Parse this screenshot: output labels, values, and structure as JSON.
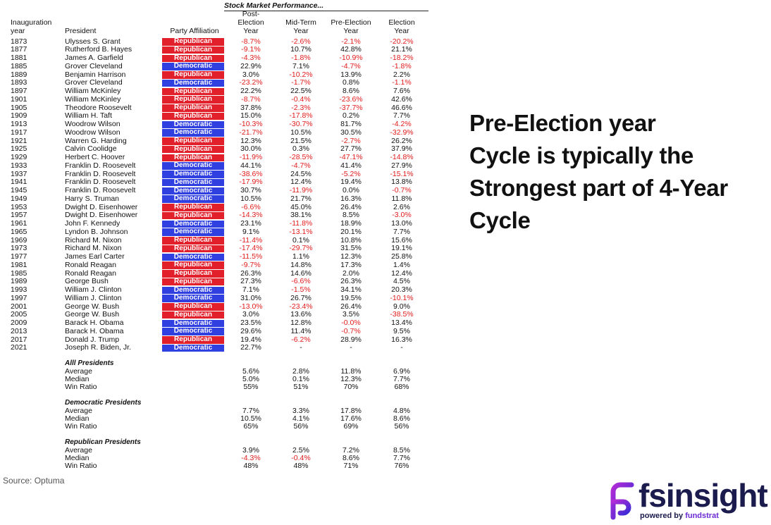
{
  "table": {
    "super_title": "Stock Market Performance...",
    "headers": {
      "year": "Inauguration\nyear",
      "president": "President",
      "party": "Party Affiliation",
      "post": "Post-\nElection\nYear",
      "mid": "Mid-Term\nYear",
      "pre": "Pre-Election\nYear",
      "elec": "Election\nYear"
    },
    "rows": [
      {
        "year": "1873",
        "president": "Ulysses S. Grant",
        "party": "Republican",
        "post": "-8.7%",
        "mid": "-2.6%",
        "pre": "-2.1%",
        "elec": "-20.2%"
      },
      {
        "year": "1877",
        "president": "Rutherford B. Hayes",
        "party": "Republican",
        "post": "-9.1%",
        "mid": "10.7%",
        "pre": "42.8%",
        "elec": "21.1%"
      },
      {
        "year": "1881",
        "president": "James A. Garfield",
        "party": "Republican",
        "post": "-4.3%",
        "mid": "-1.8%",
        "pre": "-10.9%",
        "elec": "-18.2%"
      },
      {
        "year": "1885",
        "president": "Grover Cleveland",
        "party": "Democratic",
        "post": "22.9%",
        "mid": "7.1%",
        "pre": "-4.7%",
        "elec": "-1.8%"
      },
      {
        "year": "1889",
        "president": "Benjamin Harrison",
        "party": "Republican",
        "post": "3.0%",
        "mid": "-10.2%",
        "pre": "13.9%",
        "elec": "2.2%"
      },
      {
        "year": "1893",
        "president": "Grover Cleveland",
        "party": "Democratic",
        "post": "-23.2%",
        "mid": "-1.7%",
        "pre": "0.8%",
        "elec": "-1.1%"
      },
      {
        "year": "1897",
        "president": "William McKinley",
        "party": "Republican",
        "post": "22.2%",
        "mid": "22.5%",
        "pre": "8.6%",
        "elec": "7.6%"
      },
      {
        "year": "1901",
        "president": "William McKinley",
        "party": "Republican",
        "post": "-8.7%",
        "mid": "-0.4%",
        "pre": "-23.6%",
        "elec": "42.6%"
      },
      {
        "year": "1905",
        "president": "Theodore Roosevelt",
        "party": "Republican",
        "post": "37.8%",
        "mid": "-2.3%",
        "pre": "-37.7%",
        "elec": "46.6%"
      },
      {
        "year": "1909",
        "president": "William H. Taft",
        "party": "Republican",
        "post": "15.0%",
        "mid": "-17.8%",
        "pre": "0.2%",
        "elec": "7.7%"
      },
      {
        "year": "1913",
        "president": "Woodrow Wilson",
        "party": "Democratic",
        "post": "-10.3%",
        "mid": "-30.7%",
        "pre": "81.7%",
        "elec": "-4.2%"
      },
      {
        "year": "1917",
        "president": "Woodrow Wilson",
        "party": "Democratic",
        "post": "-21.7%",
        "mid": "10.5%",
        "pre": "30.5%",
        "elec": "-32.9%"
      },
      {
        "year": "1921",
        "president": "Warren G. Harding",
        "party": "Republican",
        "post": "12.3%",
        "mid": "21.5%",
        "pre": "-2.7%",
        "elec": "26.2%"
      },
      {
        "year": "1925",
        "president": "Calvin Coolidge",
        "party": "Republican",
        "post": "30.0%",
        "mid": "0.3%",
        "pre": "27.7%",
        "elec": "37.9%"
      },
      {
        "year": "1929",
        "president": "Herbert C. Hoover",
        "party": "Republican",
        "post": "-11.9%",
        "mid": "-28.5%",
        "pre": "-47.1%",
        "elec": "-14.8%"
      },
      {
        "year": "1933",
        "president": "Franklin D. Roosevelt",
        "party": "Democratic",
        "post": "44.1%",
        "mid": "-4.7%",
        "pre": "41.4%",
        "elec": "27.9%"
      },
      {
        "year": "1937",
        "president": "Franklin D. Roosevelt",
        "party": "Democratic",
        "post": "-38.6%",
        "mid": "24.5%",
        "pre": "-5.2%",
        "elec": "-15.1%"
      },
      {
        "year": "1941",
        "president": "Franklin D. Roosevelt",
        "party": "Democratic",
        "post": "-17.9%",
        "mid": "12.4%",
        "pre": "19.4%",
        "elec": "13.8%"
      },
      {
        "year": "1945",
        "president": "Franklin D. Roosevelt",
        "party": "Democratic",
        "post": "30.7%",
        "mid": "-11.9%",
        "pre": "0.0%",
        "elec": "-0.7%"
      },
      {
        "year": "1949",
        "president": "Harry S. Truman",
        "party": "Democratic",
        "post": "10.5%",
        "mid": "21.7%",
        "pre": "16.3%",
        "elec": "11.8%"
      },
      {
        "year": "1953",
        "president": "Dwight D. Eisenhower",
        "party": "Republican",
        "post": "-6.6%",
        "mid": "45.0%",
        "pre": "26.4%",
        "elec": "2.6%"
      },
      {
        "year": "1957",
        "president": "Dwight D. Eisenhower",
        "party": "Republican",
        "post": "-14.3%",
        "mid": "38.1%",
        "pre": "8.5%",
        "elec": "-3.0%"
      },
      {
        "year": "1961",
        "president": "John F. Kennedy",
        "party": "Democratic",
        "post": "23.1%",
        "mid": "-11.8%",
        "pre": "18.9%",
        "elec": "13.0%"
      },
      {
        "year": "1965",
        "president": "Lyndon B. Johnson",
        "party": "Democratic",
        "post": "9.1%",
        "mid": "-13.1%",
        "pre": "20.1%",
        "elec": "7.7%"
      },
      {
        "year": "1969",
        "president": "Richard M. Nixon",
        "party": "Republican",
        "post": "-11.4%",
        "mid": "0.1%",
        "pre": "10.8%",
        "elec": "15.6%"
      },
      {
        "year": "1973",
        "president": "Richard M. Nixon",
        "party": "Republican",
        "post": "-17.4%",
        "mid": "-29.7%",
        "pre": "31.5%",
        "elec": "19.1%"
      },
      {
        "year": "1977",
        "president": "James Earl Carter",
        "party": "Democratic",
        "post": "-11.5%",
        "mid": "1.1%",
        "pre": "12.3%",
        "elec": "25.8%"
      },
      {
        "year": "1981",
        "president": "Ronald Reagan",
        "party": "Republican",
        "post": "-9.7%",
        "mid": "14.8%",
        "pre": "17.3%",
        "elec": "1.4%"
      },
      {
        "year": "1985",
        "president": "Ronald Reagan",
        "party": "Republican",
        "post": "26.3%",
        "mid": "14.6%",
        "pre": "2.0%",
        "elec": "12.4%"
      },
      {
        "year": "1989",
        "president": "George Bush",
        "party": "Republican",
        "post": "27.3%",
        "mid": "-6.6%",
        "pre": "26.3%",
        "elec": "4.5%"
      },
      {
        "year": "1993",
        "president": "William J. Clinton",
        "party": "Democratic",
        "post": "7.1%",
        "mid": "-1.5%",
        "pre": "34.1%",
        "elec": "20.3%"
      },
      {
        "year": "1997",
        "president": "William J. Clinton",
        "party": "Democratic",
        "post": "31.0%",
        "mid": "26.7%",
        "pre": "19.5%",
        "elec": "-10.1%"
      },
      {
        "year": "2001",
        "president": "George W. Bush",
        "party": "Republican",
        "post": "-13.0%",
        "mid": "-23.4%",
        "pre": "26.4%",
        "elec": "9.0%"
      },
      {
        "year": "2005",
        "president": "George W. Bush",
        "party": "Republican",
        "post": "3.0%",
        "mid": "13.6%",
        "pre": "3.5%",
        "elec": "-38.5%"
      },
      {
        "year": "2009",
        "president": "Barack H. Obama",
        "party": "Democratic",
        "post": "23.5%",
        "mid": "12.8%",
        "pre": "-0.0%",
        "elec": "13.4%"
      },
      {
        "year": "2013",
        "president": "Barack H. Obama",
        "party": "Democratic",
        "post": "29.6%",
        "mid": "11.4%",
        "pre": "-0.7%",
        "elec": "9.5%"
      },
      {
        "year": "2017",
        "president": "Donald J. Trump",
        "party": "Republican",
        "post": "19.4%",
        "mid": "-6.2%",
        "pre": "28.9%",
        "elec": "16.3%"
      },
      {
        "year": "2021",
        "president": "Joseph R. Biden, Jr.",
        "party": "Democratic",
        "post": "22.7%",
        "mid": "-",
        "pre": "-",
        "elec": "-"
      }
    ],
    "sections": [
      {
        "title": "Alll Presidents",
        "stats": [
          {
            "label": "Average",
            "post": "5.6%",
            "mid": "2.8%",
            "pre": "11.8%",
            "elec": "6.9%"
          },
          {
            "label": "Median",
            "post": "5.0%",
            "mid": "0.1%",
            "pre": "12.3%",
            "elec": "7.7%"
          },
          {
            "label": "Win Ratio",
            "post": "55%",
            "mid": "51%",
            "pre": "70%",
            "elec": "68%"
          }
        ]
      },
      {
        "title": "Democratic Presidents",
        "stats": [
          {
            "label": "Average",
            "post": "7.7%",
            "mid": "3.3%",
            "pre": "17.8%",
            "elec": "4.8%"
          },
          {
            "label": "Median",
            "post": "10.5%",
            "mid": "4.1%",
            "pre": "17.6%",
            "elec": "8.6%"
          },
          {
            "label": "Win Ratio",
            "post": "65%",
            "mid": "56%",
            "pre": "69%",
            "elec": "56%"
          }
        ]
      },
      {
        "title": "Republican Presidents",
        "stats": [
          {
            "label": "Average",
            "post": "3.9%",
            "mid": "2.5%",
            "pre": "7.2%",
            "elec": "8.5%"
          },
          {
            "label": "Median",
            "post": "-4.3%",
            "mid": "-0.4%",
            "pre": "8.6%",
            "elec": "7.7%"
          },
          {
            "label": "Win Ratio",
            "post": "48%",
            "mid": "48%",
            "pre": "71%",
            "elec": "76%"
          }
        ]
      }
    ]
  },
  "source": "Source:  Optuma",
  "headline": [
    "Pre-Election year",
    "Cycle is typically the",
    "Strongest part of 4-Year",
    "Cycle"
  ],
  "logo": {
    "name": "fsinsight",
    "tagline_prefix": "powered by ",
    "tagline_brand": "fundstrat"
  },
  "colors": {
    "republican": "#e1202c",
    "democratic": "#2f3fe0",
    "negative": "#e21b1b",
    "brand": "#1b1b4e",
    "brand_accent": "#6b2bd6"
  }
}
